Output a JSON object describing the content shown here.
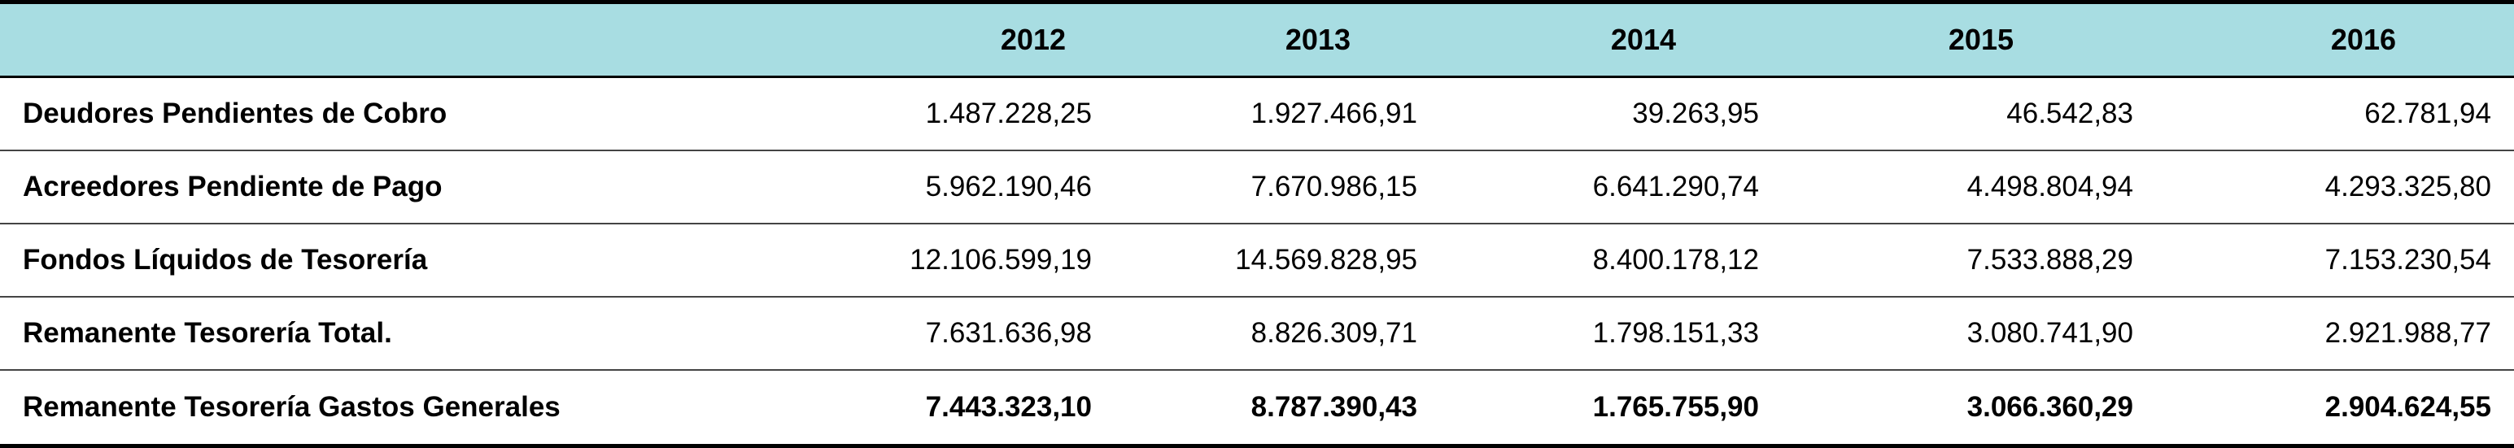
{
  "table": {
    "headers": [
      "",
      "2012",
      "2013",
      "2014",
      "2015",
      "2016"
    ],
    "rows": [
      {
        "label": "Deudores Pendientes de Cobro",
        "values": [
          "1.487.228,25",
          "1.927.466,91",
          "39.263,95",
          "46.542,83",
          "62.781,94"
        ]
      },
      {
        "label": "Acreedores Pendiente de Pago",
        "values": [
          "5.962.190,46",
          "7.670.986,15",
          "6.641.290,74",
          "4.498.804,94",
          "4.293.325,80"
        ]
      },
      {
        "label": "Fondos Líquidos de Tesorería",
        "values": [
          "12.106.599,19",
          "14.569.828,95",
          "8.400.178,12",
          "7.533.888,29",
          "7.153.230,54"
        ]
      },
      {
        "label": "Remanente Tesorería Total.",
        "values": [
          "7.631.636,98",
          "8.826.309,71",
          "1.798.151,33",
          "3.080.741,90",
          "2.921.988,77"
        ]
      },
      {
        "label": "Remanente Tesorería Gastos Generales",
        "values": [
          "7.443.323,10",
          "8.787.390,43",
          "1.765.755,90",
          "3.066.360,29",
          "2.904.624,55"
        ]
      }
    ]
  },
  "colors": {
    "header_background": "#a8dde2",
    "text": "#000000",
    "rule": "#000000"
  }
}
